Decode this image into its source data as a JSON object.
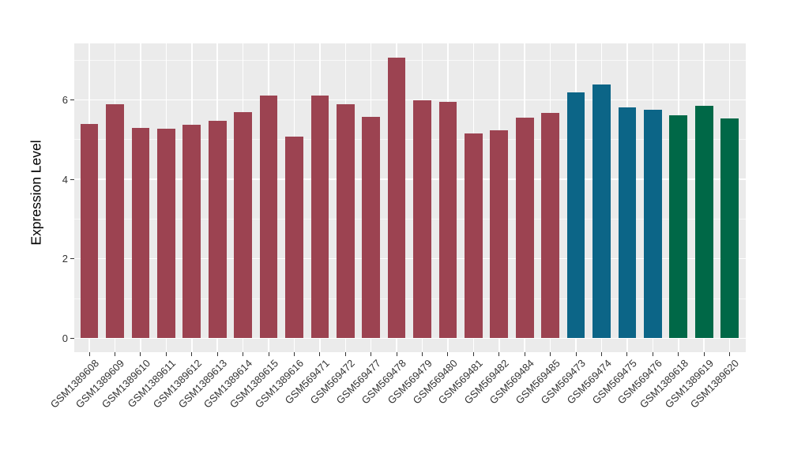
{
  "chart_data": {
    "type": "bar",
    "title": "",
    "xlabel": "",
    "ylabel": "Expression Level",
    "ylim": [
      -0.37,
      7.4
    ],
    "yticks": [
      0,
      2,
      4,
      6
    ],
    "yminor": [
      1,
      3,
      5,
      7
    ],
    "grid": "on",
    "legend": "none",
    "panel_bg": "#EBEBEB",
    "grid_color": "#FFFFFF",
    "categories": [
      "GSM1389608",
      "GSM1389609",
      "GSM1389610",
      "GSM1389611",
      "GSM1389612",
      "GSM1389613",
      "GSM1389614",
      "GSM1389615",
      "GSM1389616",
      "GSM569471",
      "GSM569472",
      "GSM569477",
      "GSM569478",
      "GSM569479",
      "GSM569480",
      "GSM569481",
      "GSM569482",
      "GSM569484",
      "GSM569485",
      "GSM569473",
      "GSM569474",
      "GSM569475",
      "GSM569476",
      "GSM1389618",
      "GSM1389619",
      "GSM1389620"
    ],
    "values": [
      5.4,
      5.9,
      5.29,
      5.27,
      5.38,
      5.48,
      5.69,
      6.1,
      5.07,
      6.1,
      5.9,
      5.58,
      7.06,
      6.0,
      5.95,
      5.16,
      5.23,
      5.56,
      5.68,
      6.18,
      6.38,
      5.81,
      5.76,
      5.61,
      5.85,
      5.53
    ],
    "bar_groups": [
      0,
      0,
      0,
      0,
      0,
      0,
      0,
      0,
      0,
      0,
      0,
      0,
      0,
      0,
      0,
      0,
      0,
      0,
      0,
      1,
      1,
      1,
      1,
      2,
      2,
      2
    ],
    "group_colors": [
      "#9C4351",
      "#0C6587",
      "#006847"
    ]
  }
}
